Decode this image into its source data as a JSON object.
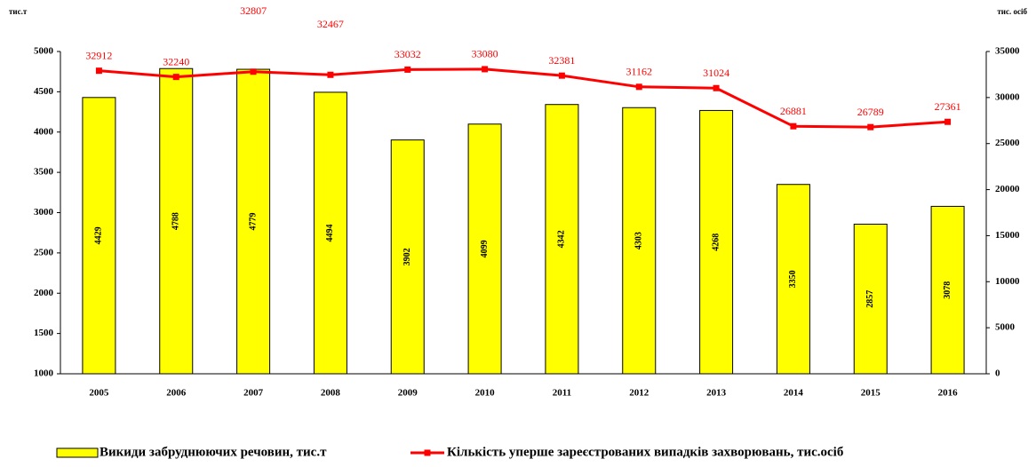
{
  "chart_data": {
    "type": "bar-line",
    "y_label": "тис.т",
    "y2_label": "тис. осіб",
    "categories": [
      "2005",
      "2006",
      "2007",
      "2008",
      "2009",
      "2010",
      "2011",
      "2012",
      "2013",
      "2014",
      "2015",
      "2016"
    ],
    "series": [
      {
        "name": "Викиди забруднюючих речовин, тис.т",
        "type": "bar",
        "color": "#ffff00",
        "values": [
          4429,
          4788,
          4779,
          4494,
          3902,
          4099,
          4342,
          4303,
          4268,
          3350,
          2857,
          3078
        ]
      },
      {
        "name": "Кількість уперше зареєстрованих випадків захворювань, тис.осіб",
        "type": "line",
        "color": "#ff0000",
        "axis": "y2",
        "values": [
          32912,
          32240,
          32807,
          32467,
          33032,
          33080,
          32381,
          31162,
          31024,
          26881,
          26789,
          27361
        ]
      }
    ],
    "ylim": [
      1000,
      5000
    ],
    "yticks": [
      1000,
      1500,
      2000,
      2500,
      3000,
      3500,
      4000,
      4500,
      5000
    ],
    "y2lim": [
      0,
      35000
    ],
    "y2ticks": [
      0,
      5000,
      10000,
      15000,
      20000,
      25000,
      30000,
      35000
    ],
    "legend": "bottom"
  }
}
